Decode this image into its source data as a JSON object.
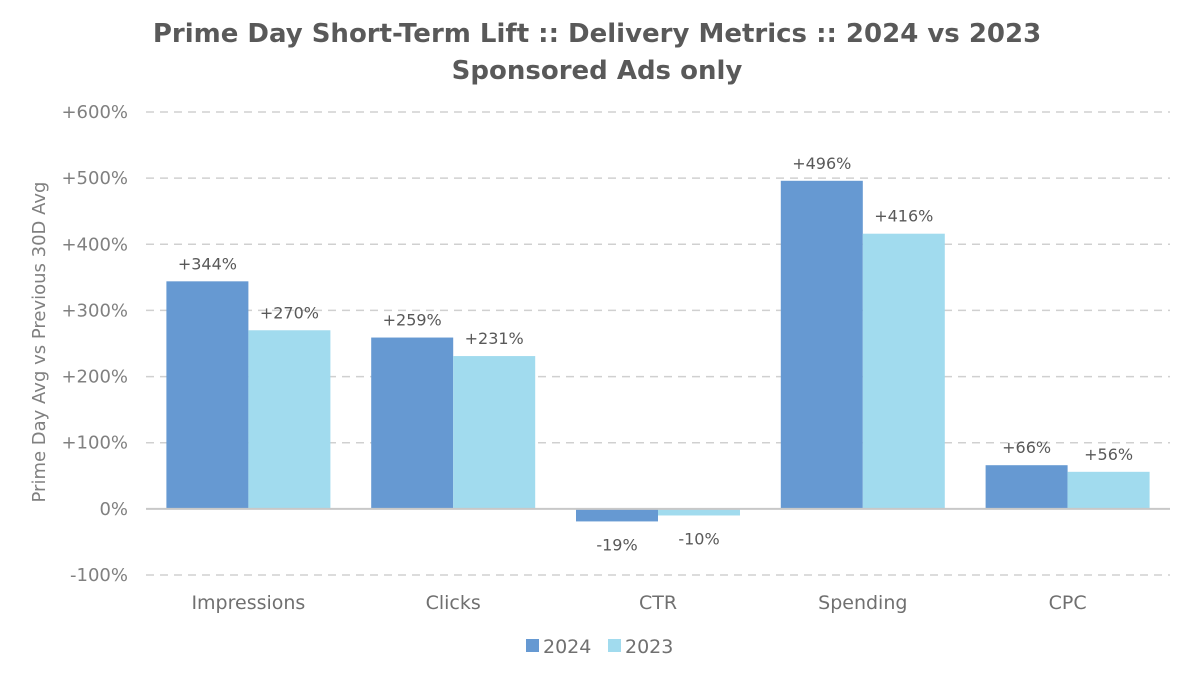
{
  "chart_data": {
    "type": "bar",
    "title": "Prime Day Short-Term Lift :: Delivery Metrics :: 2024 vs 2023",
    "subtitle": "Sponsored Ads only",
    "xlabel": "",
    "ylabel": "Prime Day Avg vs Previous 30D Avg",
    "categories": [
      "Impressions",
      "Clicks",
      "CTR",
      "Spending",
      "CPC"
    ],
    "series": [
      {
        "name": "2024",
        "color": "#6699d2",
        "values": [
          344,
          259,
          -19,
          496,
          66
        ],
        "labels": [
          "+344%",
          "+259%",
          "-19%",
          "+496%",
          "+66%"
        ]
      },
      {
        "name": "2023",
        "color": "#a1dbee",
        "values": [
          270,
          231,
          -10,
          416,
          56
        ],
        "labels": [
          "+270%",
          "+231%",
          "-10%",
          "+416%",
          "+56%"
        ]
      }
    ],
    "ylim": [
      -100,
      600
    ],
    "yticks": [
      600,
      500,
      400,
      300,
      200,
      100,
      0,
      -100
    ],
    "ytick_labels": [
      "+600%",
      "+500%",
      "+400%",
      "+300%",
      "+200%",
      "+100%",
      "0%",
      "-100%"
    ],
    "grid": true,
    "legend_position": "bottom-center"
  }
}
